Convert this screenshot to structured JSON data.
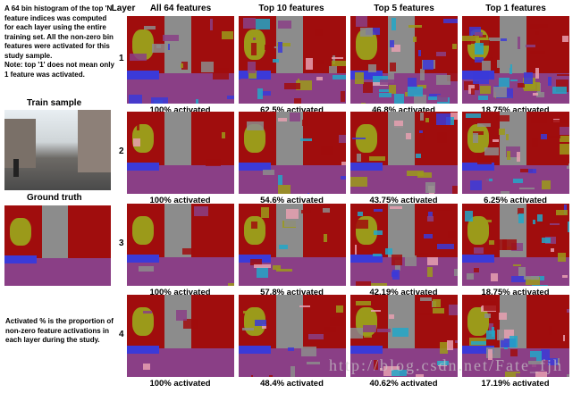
{
  "notes": {
    "top": "A 64 bin histogram of the top 'N' feature indices was computed for each layer using the entire training set. All the non-zero bin features were activated for this study sample.",
    "note": "Note: top '1' does not mean only 1 feature was activated.",
    "bottom": "Activated % is the proportion of non-zero feature activations in each layer during the study."
  },
  "train_sample": "Train sample",
  "ground_truth": "Ground truth",
  "layer_header": "Layer",
  "columns": [
    "All 64 features",
    "Top 10 features",
    "Top 5 features",
    "Top 1 features"
  ],
  "rows": [
    {
      "layer": "1",
      "labels": [
        "100% activated",
        "62.5% activated",
        "46.8% activated",
        "18.75% activated"
      ]
    },
    {
      "layer": "2",
      "labels": [
        "100% activated",
        "54.6% activated",
        "43.75% activated",
        "6.25% activated"
      ]
    },
    {
      "layer": "3",
      "labels": [
        "100% activated",
        "57.8% activated",
        "42.19% activated",
        "18.75% activated"
      ]
    },
    {
      "layer": "4",
      "labels": [
        "100% activated",
        "48.4% activated",
        "40.62% activated",
        "17.19% activated"
      ]
    }
  ],
  "watermark": "http://blog.csdn.net/Fate_fjh",
  "colors": {
    "sky": "#8c8c8c",
    "building": "#a00d0d",
    "road": "#8a3f86",
    "tree": "#9b9a1a",
    "car": "#3b3ad8",
    "sign": "#22a7c8"
  }
}
